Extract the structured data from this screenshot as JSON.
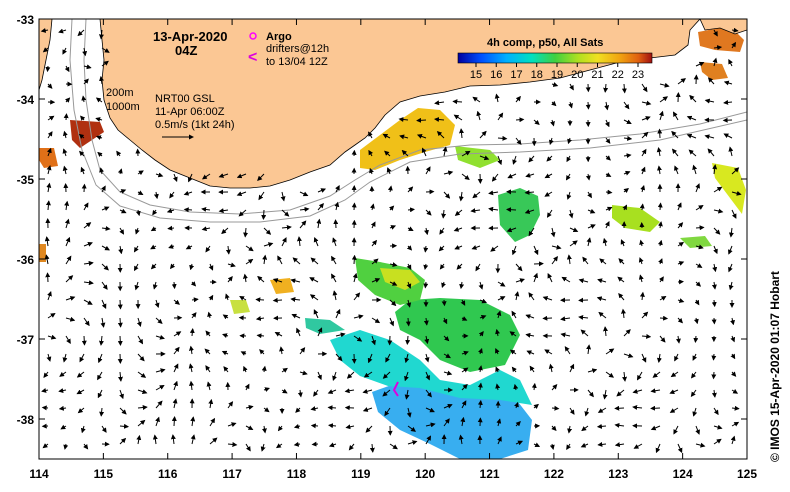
{
  "map": {
    "date": "13-Apr-2020",
    "hour": "04Z",
    "argo_label": "Argo",
    "drifter_line1": "drifters@12h",
    "drifter_line2": "to 13/04 12Z",
    "drifter_symbol": "<",
    "isobath_200": "200m",
    "isobath_1000": "1000m",
    "product": "NRT00 GSL",
    "product_date": "11-Apr 06:00Z",
    "scale_text": "0.5m/s (1kt 24h)",
    "colorbar_title": "4h comp, p50, All Sats",
    "colorbar_ticks": [
      "15",
      "16",
      "17",
      "18",
      "19",
      "20",
      "21",
      "22",
      "23"
    ],
    "credit": "© IMOS 15-Apr-2020 01:07 Hobart",
    "lat_labels": [
      "-33",
      "-34",
      "-35",
      "-36",
      "-37",
      "-38"
    ],
    "lon_labels": [
      "114",
      "115",
      "116",
      "117",
      "118",
      "119",
      "120",
      "121",
      "122",
      "123",
      "124",
      "125"
    ],
    "colors": {
      "land": "#fbc794",
      "argo": "#ff00ff",
      "drifter": "#dd00dd",
      "isobath": "#999999"
    }
  }
}
